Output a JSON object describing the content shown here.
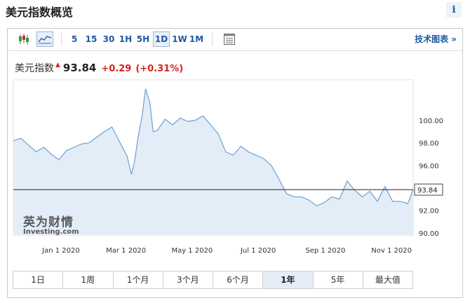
{
  "header": {
    "title": "美元指数概览",
    "info_label": "i"
  },
  "toolbar": {
    "intervals": [
      "5",
      "15",
      "30",
      "1H",
      "5H",
      "1D",
      "1W",
      "1M"
    ],
    "active_interval": "1D",
    "icons": [
      "candlestick-icon",
      "area-chart-icon",
      "table-icon"
    ],
    "tech_chart_label": "技术图表 »"
  },
  "quote": {
    "name": "美元指数",
    "price": "93.84",
    "change": "+0.29",
    "change_pct": "(+0.31%)",
    "direction": "up",
    "up_color": "#d9231d"
  },
  "ranges": {
    "items": [
      "1日",
      "1周",
      "1个月",
      "3个月",
      "6个月",
      "1年",
      "5年",
      "最大值"
    ],
    "active": "1年"
  },
  "logo": {
    "cn": "英为财情",
    "en": "Investing.com"
  },
  "chart_data": {
    "type": "area",
    "x_tick_labels": [
      "Jan 1 2020",
      "Mar 1 2020",
      "May 1 2020",
      "Jul 1 2020",
      "Sep 1 2020",
      "Nov 1 2020"
    ],
    "x_ticks": [
      "2020-01-01",
      "2020-03-01",
      "2020-05-01",
      "2020-07-01",
      "2020-09-01",
      "2020-11-01"
    ],
    "y_tick_labels": [
      "90.00",
      "92.00",
      "94.00",
      "96.00",
      "98.00",
      "100.00"
    ],
    "y_ticks": [
      90,
      92,
      94,
      96,
      98,
      100
    ],
    "ylim": [
      89.8,
      103.6
    ],
    "xlim": [
      "2019-11-18",
      "2020-11-21"
    ],
    "last_price": 93.84,
    "last_price_label": "93.84",
    "line_color": "#6f9fcf",
    "fill_color": "#e3edf7",
    "grid": false,
    "series": [
      {
        "dates": [
          "2019-11-18",
          "2019-11-25",
          "2019-12-02",
          "2019-12-09",
          "2019-12-16",
          "2019-12-23",
          "2019-12-30",
          "2020-01-06",
          "2020-01-13",
          "2020-01-20",
          "2020-01-27",
          "2020-02-03",
          "2020-02-10",
          "2020-02-17",
          "2020-02-24",
          "2020-03-02",
          "2020-03-06",
          "2020-03-09",
          "2020-03-12",
          "2020-03-16",
          "2020-03-19",
          "2020-03-23",
          "2020-03-26",
          "2020-03-30",
          "2020-04-06",
          "2020-04-13",
          "2020-04-20",
          "2020-04-27",
          "2020-05-04",
          "2020-05-11",
          "2020-05-18",
          "2020-05-25",
          "2020-06-01",
          "2020-06-08",
          "2020-06-15",
          "2020-06-22",
          "2020-06-29",
          "2020-07-06",
          "2020-07-13",
          "2020-07-20",
          "2020-07-27",
          "2020-08-03",
          "2020-08-10",
          "2020-08-17",
          "2020-08-24",
          "2020-08-31",
          "2020-09-07",
          "2020-09-14",
          "2020-09-21",
          "2020-09-28",
          "2020-10-05",
          "2020-10-12",
          "2020-10-19",
          "2020-10-26",
          "2020-11-02",
          "2020-11-09",
          "2020-11-16",
          "2020-11-21"
        ],
        "values": [
          98.2,
          98.4,
          97.8,
          97.2,
          97.6,
          97.0,
          96.5,
          97.3,
          97.6,
          97.9,
          98.0,
          98.5,
          99.0,
          99.4,
          98.1,
          96.8,
          95.2,
          96.4,
          98.4,
          100.5,
          102.8,
          101.6,
          99.0,
          99.1,
          100.1,
          99.6,
          100.2,
          99.9,
          100.0,
          100.4,
          99.6,
          98.8,
          97.2,
          96.9,
          97.7,
          97.2,
          96.9,
          96.6,
          96.0,
          94.8,
          93.5,
          93.2,
          93.2,
          92.9,
          92.4,
          92.7,
          93.2,
          93.0,
          94.6,
          93.8,
          93.2,
          93.7,
          92.8,
          94.1,
          92.8,
          92.8,
          92.6,
          93.84
        ]
      }
    ]
  }
}
